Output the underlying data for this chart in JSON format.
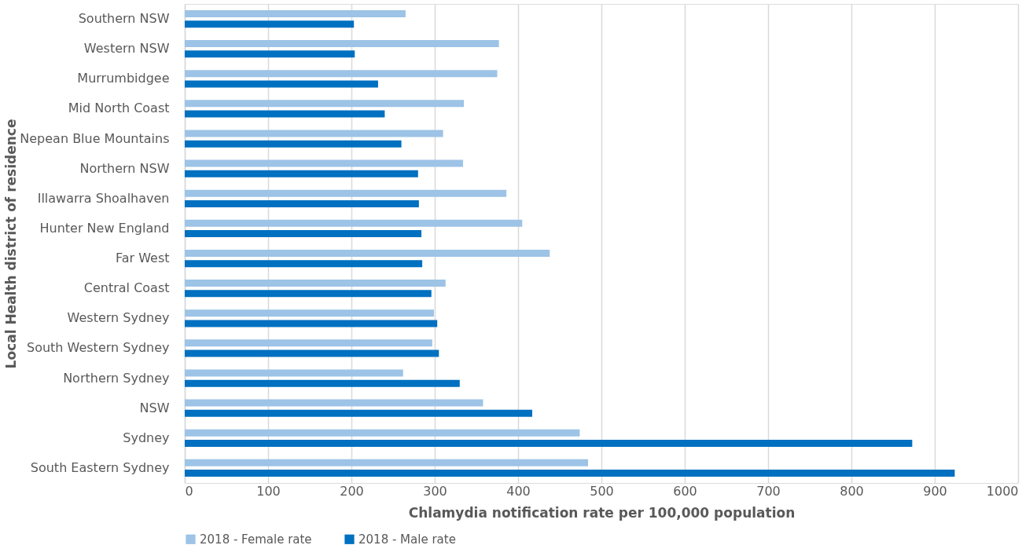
{
  "chart_data": {
    "type": "bar",
    "orientation": "horizontal",
    "xlabel": "Chlamydia notification rate per 100,000 population",
    "ylabel": "Local Health district of residence",
    "categories": [
      "Southern NSW",
      "Western NSW",
      "Murrumbidgee",
      "Mid North Coast",
      "Nepean Blue Mountains",
      "Northern NSW",
      "Illawarra Shoalhaven",
      "Hunter New England",
      "Far West",
      "Central Coast",
      "Western Sydney",
      "South Western Sydney",
      "Northern Sydney",
      "NSW",
      "Sydney",
      "South Eastern Sydney"
    ],
    "series": [
      {
        "name": "2018 - Female rate",
        "color": "#9dc3e6",
        "values": [
          265,
          377,
          375,
          335,
          310,
          334,
          386,
          405,
          438,
          313,
          299,
          297,
          262,
          358,
          474,
          484
        ]
      },
      {
        "name": "2018 -  Male rate",
        "color": "#0070c0",
        "values": [
          203,
          204,
          232,
          240,
          260,
          280,
          281,
          284,
          285,
          296,
          303,
          305,
          330,
          417,
          873,
          924
        ]
      }
    ],
    "xlim": [
      0,
      1000
    ],
    "xticks": [
      0,
      100,
      200,
      300,
      400,
      500,
      600,
      700,
      800,
      900,
      1000
    ],
    "grid": "x",
    "legend": "bottom"
  }
}
